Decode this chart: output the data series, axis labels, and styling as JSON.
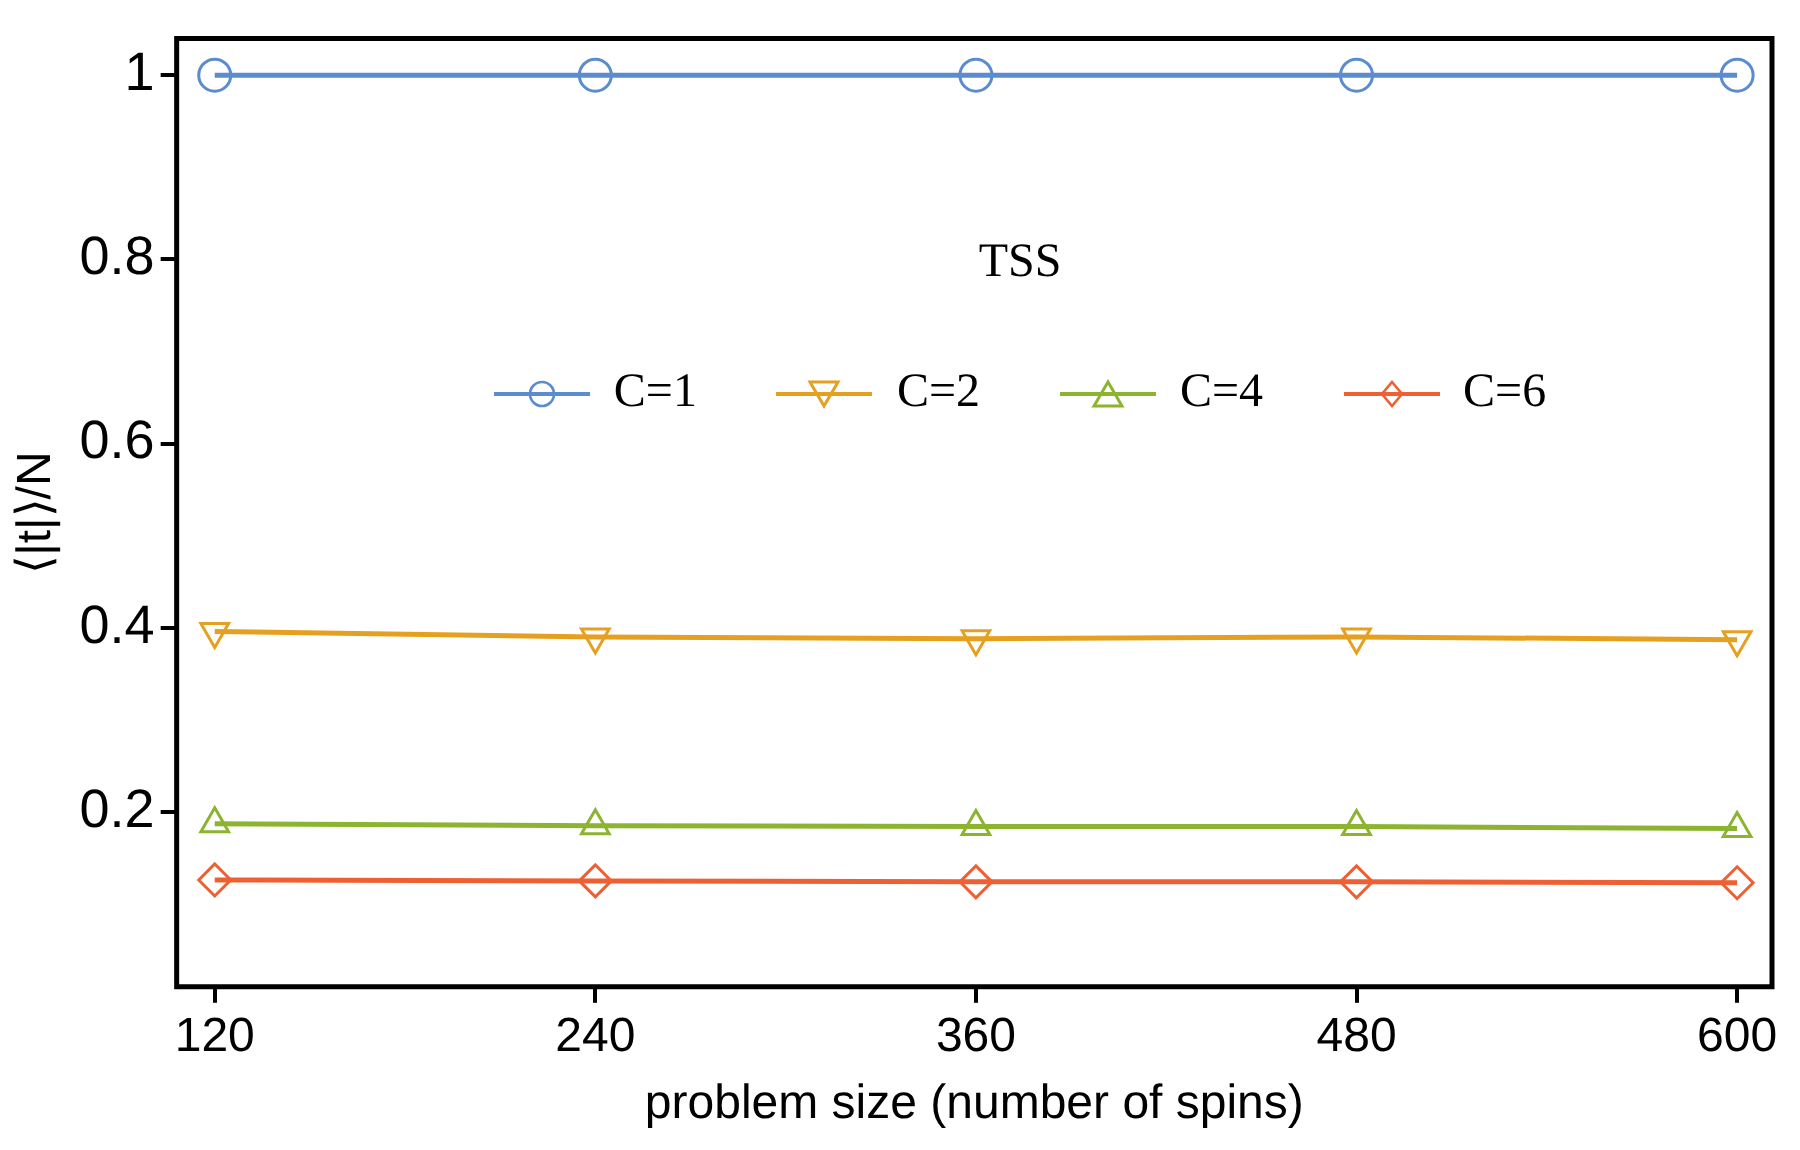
{
  "chart_data": {
    "type": "line",
    "xlabel": "problem size (number of spins)",
    "ylabel": "⟨|t|⟩/N",
    "legend_title": "TSS",
    "legend": "top",
    "x": [
      120,
      240,
      360,
      480,
      600
    ],
    "xlim": [
      108,
      611
    ],
    "xticks": [
      120,
      240,
      360,
      480,
      600
    ],
    "ylim": [
      0.01,
      1.04
    ],
    "yticks": [
      0.2,
      0.4,
      0.6,
      0.8,
      1
    ],
    "grid": false,
    "line_style": "solid",
    "series": [
      {
        "name": "C=1",
        "color": "#5b8cd0",
        "marker": "circle",
        "values": [
          1,
          1,
          1,
          1,
          1
        ]
      },
      {
        "name": "C=2",
        "color": "#e6a020",
        "marker": "triangle-down",
        "values": [
          0.396,
          0.39,
          0.388,
          0.39,
          0.387
        ]
      },
      {
        "name": "C=4",
        "color": "#8cb431",
        "marker": "triangle",
        "values": [
          0.187,
          0.185,
          0.184,
          0.184,
          0.182
        ]
      },
      {
        "name": "C=6",
        "color": "#ee6034",
        "marker": "diamond",
        "values": [
          0.126,
          0.125,
          0.124,
          0.124,
          0.123
        ]
      }
    ]
  }
}
